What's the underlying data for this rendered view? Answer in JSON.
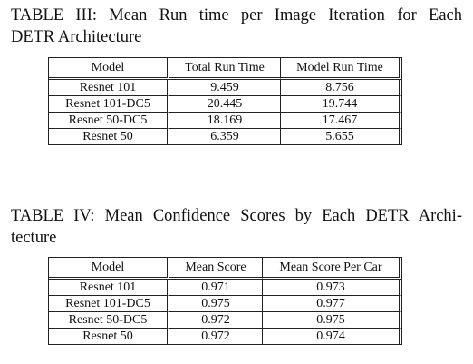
{
  "table3": {
    "caption_line1": "TABLE III: Mean Run time per Image Iteration for Each",
    "caption_line2": "DETR Architecture",
    "headers": [
      "Model",
      "Total Run Time",
      "Model Run Time"
    ],
    "rows": [
      [
        "Resnet 101",
        "9.459",
        "8.756"
      ],
      [
        "Resnet 101-DC5",
        "20.445",
        "19.744"
      ],
      [
        "Resnet 50-DC5",
        "18.169",
        "17.467"
      ],
      [
        "Resnet 50",
        "6.359",
        "5.655"
      ]
    ]
  },
  "table4": {
    "caption_line1": "TABLE IV: Mean Confidence Scores by Each DETR Archi-",
    "caption_line2": "tecture",
    "headers": [
      "Model",
      "Mean Score",
      "Mean Score Per Car"
    ],
    "rows": [
      [
        "Resnet 101",
        "0.971",
        "0.973"
      ],
      [
        "Resnet 101-DC5",
        "0.975",
        "0.977"
      ],
      [
        "Resnet 50-DC5",
        "0.972",
        "0.975"
      ],
      [
        "Resnet 50",
        "0.972",
        "0.974"
      ]
    ]
  }
}
